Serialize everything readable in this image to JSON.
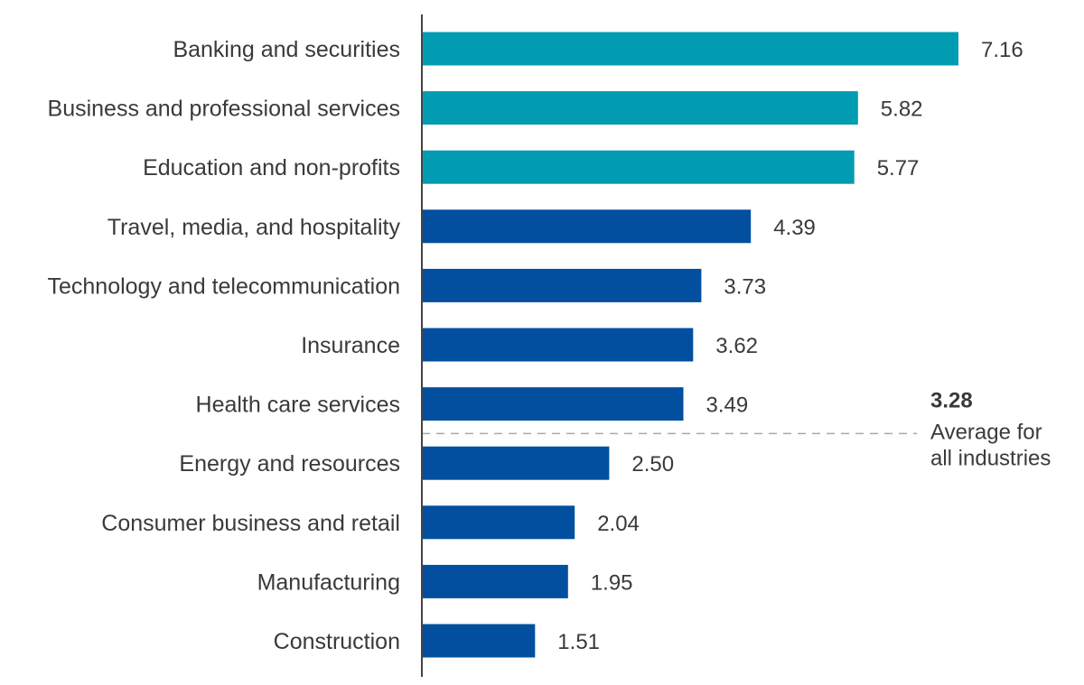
{
  "chart_data": {
    "type": "bar",
    "orientation": "horizontal",
    "title": "",
    "xlabel": "",
    "ylabel": "",
    "xlim": [
      0,
      7.16
    ],
    "grid": false,
    "categories": [
      "Banking and securities",
      "Business and professional services",
      "Education and non-profits",
      "Travel, media, and hospitality",
      "Technology and telecommunication",
      "Insurance",
      "Health care services",
      "Energy and resources",
      "Consumer business and retail",
      "Manufacturing",
      "Construction"
    ],
    "values": [
      7.16,
      5.82,
      5.77,
      4.39,
      3.73,
      3.62,
      3.49,
      2.5,
      2.04,
      1.95,
      1.51
    ],
    "value_labels": [
      "7.16",
      "5.82",
      "5.77",
      "4.39",
      "3.73",
      "3.62",
      "3.49",
      "2.50",
      "2.04",
      "1.95",
      "1.51"
    ],
    "highlight_count": 3,
    "colors": {
      "highlight": "#019BB2",
      "default": "#014F9E",
      "axis": "#444444",
      "reference_line": "#AAAAAA"
    },
    "reference_line": {
      "value": 3.28,
      "value_label": "3.28",
      "label_lines": [
        "Average for",
        "all industries"
      ]
    }
  }
}
